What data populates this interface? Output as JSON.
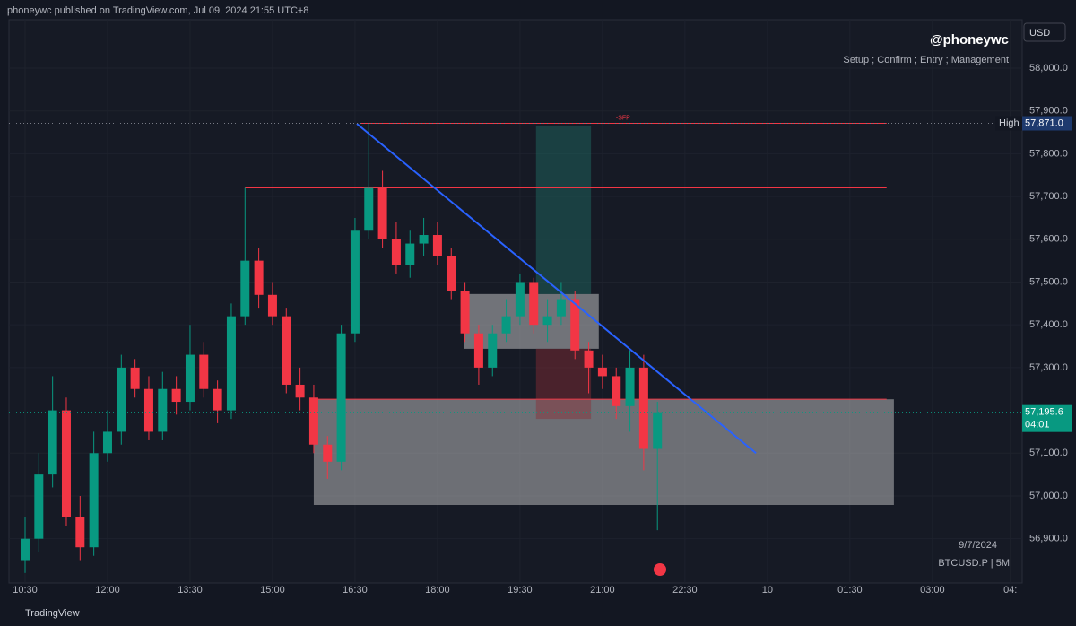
{
  "chart_data": {
    "type": "candlestick",
    "header": "phoneywc published on TradingView.com, Jul 09, 2024 21:55 UTC+8",
    "author": "@phoneywc",
    "subtitle": "Setup ; Confirm ; Entry ; Management",
    "currency": "USD",
    "date_label": "9/7/2024",
    "symbol": "BTCUSD.P | 5M",
    "brand": "TradingView",
    "up_color": "#089981",
    "down_color": "#f23645",
    "x": [
      0,
      3,
      6,
      9,
      12,
      15,
      18,
      21,
      24,
      27,
      30,
      33,
      36,
      39,
      42,
      45,
      48,
      51,
      54,
      57,
      60,
      63,
      66,
      69,
      72,
      75,
      78,
      81,
      84,
      87,
      90,
      93,
      96,
      99,
      102,
      105,
      108,
      111,
      114,
      117,
      120,
      123,
      126,
      129,
      132,
      135,
      138
    ],
    "open": [
      56850,
      56900,
      57050,
      57200,
      56950,
      56880,
      57100,
      57150,
      57300,
      57250,
      57150,
      57250,
      57220,
      57330,
      57250,
      57200,
      57420,
      57550,
      57470,
      57420,
      57260,
      57230,
      57120,
      57080,
      57380,
      57620,
      57720,
      57600,
      57540,
      57590,
      57610,
      57560,
      57480,
      57380,
      57300,
      57380,
      57420,
      57500,
      57400,
      57420,
      57460,
      57340,
      57300,
      57280,
      57210,
      57300,
      57110
    ],
    "high": [
      56950,
      57100,
      57280,
      57230,
      57000,
      57150,
      57200,
      57330,
      57320,
      57280,
      57290,
      57280,
      57400,
      57360,
      57270,
      57450,
      57720,
      57580,
      57500,
      57440,
      57300,
      57260,
      57140,
      57400,
      57650,
      57871,
      57760,
      57640,
      57620,
      57650,
      57640,
      57580,
      57500,
      57400,
      57400,
      57460,
      57520,
      57510,
      57460,
      57500,
      57480,
      57360,
      57330,
      57300,
      57340,
      57330,
      57220
    ],
    "low": [
      56820,
      56870,
      57020,
      56930,
      56850,
      56860,
      57080,
      57120,
      57230,
      57130,
      57130,
      57190,
      57200,
      57230,
      57170,
      57180,
      57400,
      57440,
      57400,
      57240,
      57200,
      57100,
      57040,
      57060,
      57360,
      57600,
      57580,
      57520,
      57510,
      57560,
      57540,
      57460,
      57360,
      57260,
      57280,
      57360,
      57400,
      57380,
      57360,
      57400,
      57320,
      57240,
      57250,
      57180,
      57150,
      57060,
      56920
    ],
    "close": [
      56900,
      57050,
      57200,
      56950,
      56880,
      57100,
      57150,
      57300,
      57250,
      57150,
      57250,
      57220,
      57330,
      57250,
      57200,
      57420,
      57550,
      57470,
      57420,
      57260,
      57230,
      57120,
      57080,
      57380,
      57620,
      57720,
      57600,
      57540,
      57590,
      57610,
      57560,
      57480,
      57380,
      57300,
      57380,
      57420,
      57500,
      57400,
      57420,
      57460,
      57340,
      57300,
      57280,
      57210,
      57300,
      57110,
      57195.6
    ],
    "ylim": [
      56796.6,
      58113.2
    ],
    "yticks": [
      {
        "value": 56900,
        "label": "56,900.0"
      },
      {
        "value": 57000,
        "label": "57,000.0"
      },
      {
        "value": 57100,
        "label": "57,100.0"
      },
      {
        "value": 57300,
        "label": "57,300.0"
      },
      {
        "value": 57400,
        "label": "57,400.0"
      },
      {
        "value": 57500,
        "label": "57,500.0"
      },
      {
        "value": 57600,
        "label": "57,600.0"
      },
      {
        "value": 57700,
        "label": "57,700.0"
      },
      {
        "value": 57800,
        "label": "57,800.0"
      },
      {
        "value": 57900,
        "label": "57,900.0"
      },
      {
        "value": 58000,
        "label": "58,000.0"
      }
    ],
    "xlim": [
      -3.52,
      217.6
    ],
    "xticks": [
      {
        "value": 0,
        "label": "10:30"
      },
      {
        "value": 18,
        "label": "12:00"
      },
      {
        "value": 36,
        "label": "13:30"
      },
      {
        "value": 54,
        "label": "15:00"
      },
      {
        "value": 72,
        "label": "16:30"
      },
      {
        "value": 90,
        "label": "18:00"
      },
      {
        "value": 108,
        "label": "19:30"
      },
      {
        "value": 126,
        "label": "21:00"
      },
      {
        "value": 144,
        "label": "22:30"
      },
      {
        "value": 162,
        "label": "10"
      },
      {
        "value": 180,
        "label": "01:30"
      },
      {
        "value": 198,
        "label": "03:00"
      },
      {
        "value": 215,
        "label": "04:"
      }
    ],
    "high_mark": {
      "name": "High",
      "value": 57871,
      "label": "57,871.0"
    },
    "last": {
      "value": 57195.6,
      "label": "57,195.6",
      "countdown": "04:01"
    },
    "lines": [
      {
        "x": [
          73,
          188
        ],
        "y": 57871,
        "label": "-SFP"
      },
      {
        "x": [
          48,
          188
        ],
        "y": 57720
      },
      {
        "x": [
          63,
          188
        ],
        "y": 57226
      }
    ],
    "boxes": [
      {
        "x": [
          63,
          189.6
        ],
        "y": [
          56979,
          57226
        ],
        "color": "#d8d8d8"
      },
      {
        "x": [
          95.7,
          125.2
        ],
        "y": [
          57344,
          57472
        ],
        "color": "#e0e0e0"
      },
      {
        "x": [
          111.5,
          123.5
        ],
        "y": [
          57472,
          57866
        ],
        "color": "#1f6f66"
      },
      {
        "x": [
          111.5,
          123.5
        ],
        "y": [
          57180,
          57344
        ],
        "color": "#8a2c36"
      }
    ],
    "trendline": {
      "x": [
        72.4,
        159.5
      ],
      "y": [
        57870,
        57100
      ],
      "color": "#2962ff"
    }
  }
}
